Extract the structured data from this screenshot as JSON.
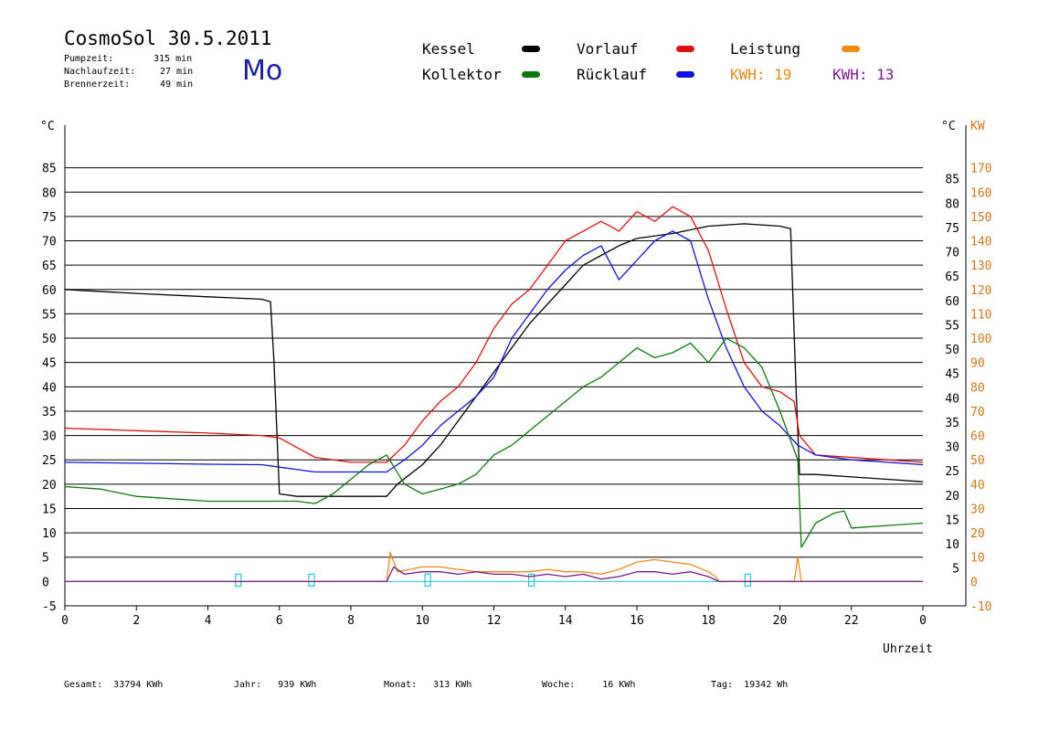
{
  "header": {
    "title": "CosmoSol 30.5.2011",
    "day": "Mo",
    "stats": [
      {
        "label": "Pumpzeit:",
        "value": "315 min"
      },
      {
        "label": "Nachlaufzeit:",
        "value": "27 min"
      },
      {
        "label": "Brennerzeit:",
        "value": "49 min"
      }
    ]
  },
  "legend": {
    "items": [
      {
        "label": "Kessel",
        "color": "#000000"
      },
      {
        "label": "Vorlauf",
        "color": "#e01010"
      },
      {
        "label": "Leistung",
        "color": "#f08a10"
      },
      {
        "label": "Kollektor",
        "color": "#0a7a0a"
      },
      {
        "label": "Rücklauf",
        "color": "#1010e0"
      }
    ],
    "kwh1": "KWH: 19",
    "kwh2": "KWH: 13",
    "kwh1_color": "#e08a10",
    "kwh2_color": "#7a1a8a"
  },
  "footer": {
    "gesamt": "Gesamt:  33794 KWh",
    "jahr": "Jahr:   939 KWh",
    "monat": "Monat:   313 KWh",
    "woche": "Woche:     16 KWh",
    "tag": "Tag:  19342 Wh"
  },
  "chart_data": {
    "type": "line",
    "xlabel": "Uhrzeit",
    "ylabel_left": "°C",
    "ylabel_right_1": "°C",
    "ylabel_right_2": "KW",
    "xlim": [
      0,
      24
    ],
    "ylim": [
      -5,
      90
    ],
    "x_ticks": [
      "0",
      "2",
      "4",
      "6",
      "8",
      "10",
      "12",
      "14",
      "16",
      "18",
      "20",
      "22",
      "0"
    ],
    "y_ticks_left": [
      -5,
      0,
      5,
      10,
      15,
      20,
      25,
      30,
      35,
      40,
      45,
      50,
      55,
      60,
      65,
      70,
      75,
      80,
      85
    ],
    "y_ticks_right_c": [
      5,
      10,
      15,
      20,
      25,
      30,
      35,
      40,
      45,
      50,
      55,
      60,
      65,
      70,
      75,
      80,
      85
    ],
    "y_ticks_right_kw": [
      -10,
      0,
      10,
      20,
      30,
      40,
      50,
      60,
      70,
      80,
      90,
      100,
      110,
      120,
      130,
      140,
      150,
      160,
      170
    ],
    "grid": true,
    "series": [
      {
        "name": "Kessel",
        "color": "#000000",
        "x": [
          0,
          2,
          4,
          5.5,
          5.75,
          5.85,
          6.0,
          6.5,
          8,
          9.0,
          9.3,
          10.0,
          10.5,
          11.0,
          12.0,
          13.0,
          14.0,
          14.5,
          15.0,
          15.5,
          16.0,
          17.0,
          18.0,
          19.0,
          20.0,
          20.3,
          20.45,
          20.55,
          21.0,
          22.0,
          23.0,
          24.0
        ],
        "y": [
          60,
          59.2,
          58.5,
          58,
          57.5,
          45,
          18,
          17.5,
          17.5,
          17.5,
          20,
          24,
          28,
          33,
          43,
          53,
          61,
          65,
          67,
          69,
          70.5,
          71.5,
          73,
          73.5,
          73,
          72.5,
          40,
          22,
          22,
          21.5,
          21,
          20.5
        ]
      },
      {
        "name": "Vorlauf",
        "color": "#e01010",
        "x": [
          0,
          2,
          4,
          5.5,
          6.0,
          6.5,
          7.0,
          8.0,
          9.0,
          9.5,
          10.0,
          10.5,
          11.0,
          11.5,
          12.0,
          12.5,
          13.0,
          13.5,
          14.0,
          14.5,
          15.0,
          15.5,
          16.0,
          16.5,
          17.0,
          17.5,
          18.0,
          18.5,
          19.0,
          19.5,
          20.0,
          20.4,
          20.55,
          21.0,
          22.0,
          23.0,
          24.0
        ],
        "y": [
          31.5,
          31,
          30.5,
          30,
          29.5,
          27.5,
          25.5,
          24.5,
          24.5,
          28,
          33,
          37,
          40,
          45,
          52,
          57,
          60,
          65,
          70,
          72,
          74,
          72,
          76,
          74,
          77,
          75,
          68,
          56,
          45,
          40,
          39,
          37,
          30,
          26,
          25.5,
          25,
          24.5
        ]
      },
      {
        "name": "Rücklauf",
        "color": "#1010e0",
        "x": [
          0,
          2,
          4,
          5.5,
          6.0,
          6.5,
          7.0,
          8.0,
          9.0,
          9.5,
          10.0,
          10.5,
          11.0,
          11.5,
          12.0,
          12.5,
          13.0,
          13.5,
          14.0,
          14.5,
          15.0,
          15.5,
          16.0,
          16.5,
          17.0,
          17.5,
          18.0,
          18.5,
          19.0,
          19.5,
          20.0,
          20.5,
          21.0,
          22.0,
          23.0,
          24.0
        ],
        "y": [
          24.5,
          24.3,
          24.1,
          24,
          23.5,
          23,
          22.5,
          22.5,
          22.5,
          25,
          28,
          32,
          35,
          38,
          42,
          50,
          55,
          60,
          64,
          67,
          69,
          62,
          66,
          70,
          72,
          70,
          58,
          48,
          40,
          35,
          32,
          28,
          26,
          25,
          24.5,
          24
        ]
      },
      {
        "name": "Kollektor",
        "color": "#0a7a0a",
        "x": [
          0,
          1,
          2,
          3,
          4,
          5,
          6,
          6.5,
          7.0,
          7.5,
          8.0,
          8.5,
          9.0,
          9.5,
          10.0,
          10.5,
          11.0,
          11.5,
          12.0,
          12.5,
          13.0,
          13.5,
          14.0,
          14.5,
          15.0,
          15.5,
          16.0,
          16.5,
          17.0,
          17.5,
          18.0,
          18.5,
          19.0,
          19.5,
          20.0,
          20.3,
          20.5,
          20.6,
          21.0,
          21.5,
          21.8,
          22.0,
          23.0,
          24.0
        ],
        "y": [
          19.5,
          19,
          17.5,
          17,
          16.5,
          16.5,
          16.5,
          16.5,
          16,
          18,
          21,
          24,
          26,
          20,
          18,
          19,
          20,
          22,
          26,
          28,
          31,
          34,
          37,
          40,
          42,
          45,
          48,
          46,
          47,
          49,
          45,
          50,
          48,
          44,
          35,
          29,
          25,
          7,
          12,
          14,
          14.5,
          11,
          11.5,
          12
        ]
      },
      {
        "name": "Leistung",
        "color": "#f08a10",
        "x": [
          0,
          9.0,
          9.1,
          9.3,
          10.0,
          10.5,
          11.0,
          11.5,
          12.0,
          12.5,
          13.0,
          13.5,
          14.0,
          14.5,
          15.0,
          15.5,
          16.0,
          16.5,
          17.0,
          17.5,
          18.0,
          18.2,
          18.3,
          20.4,
          20.5,
          20.6,
          24.0
        ],
        "y": [
          0,
          0,
          6,
          2,
          3,
          3,
          2.5,
          2,
          2,
          2,
          2,
          2.5,
          2,
          2,
          1.5,
          2.5,
          4,
          4.5,
          4,
          3.5,
          2,
          1,
          0,
          0,
          5,
          0,
          0
        ]
      }
    ],
    "kwh_series": {
      "name": "KWH",
      "color": "#7a1a8a",
      "x": [
        0,
        9.0,
        9.2,
        9.5,
        10.0,
        10.5,
        11.0,
        11.5,
        12.0,
        12.5,
        13.0,
        13.5,
        14.0,
        14.5,
        15.0,
        15.5,
        16.0,
        16.5,
        17.0,
        17.5,
        18.0,
        18.3,
        24.0
      ],
      "y": [
        0,
        0,
        3,
        1.5,
        2,
        2,
        1.5,
        2,
        1.5,
        1.5,
        1,
        1.5,
        1,
        1.5,
        0.5,
        1,
        2,
        2,
        1.5,
        2,
        1,
        0,
        0
      ]
    },
    "pump_markers": {
      "color": "#20c8d8",
      "x": [
        4.85,
        6.9,
        10.15,
        13.05,
        19.1
      ]
    }
  }
}
